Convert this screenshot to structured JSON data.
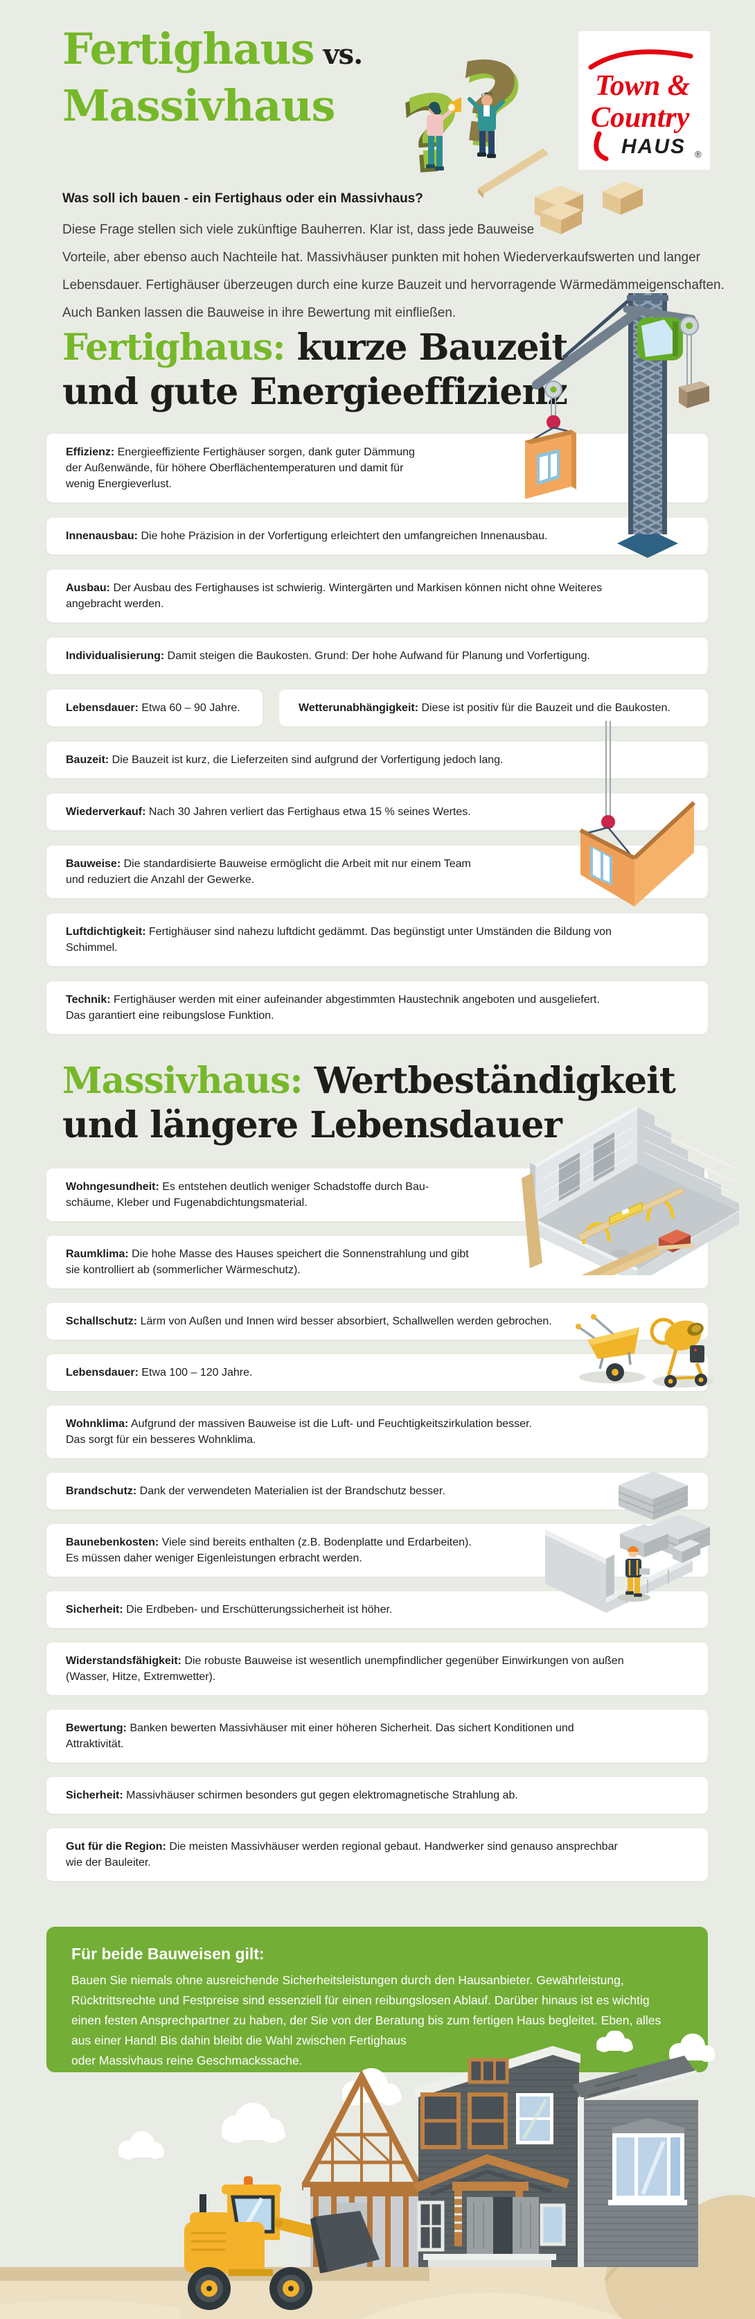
{
  "colors": {
    "background": "#e9ece4",
    "brand_green": "#76b82a",
    "notice_green": "#73ae37",
    "dark_text": "#1d1d1b",
    "body_text": "#3c3c3b",
    "logo_red": "#e30613",
    "card_background": "#ffffff"
  },
  "header": {
    "title": {
      "line1_green": "Fertighaus",
      "line1_dark": " vs.",
      "line2_green": "Massivhaus"
    },
    "question": "Was soll ich bauen - ein Fertighaus oder ein Massivhaus?",
    "intro": "Diese Frage stellen sich viele zukünftige Bauherren. Klar ist, dass jede Bauweise\nVorteile, aber ebenso auch Nachteile hat. Massivhäuser punkten mit hohen Wiederverkaufswerten und langer\nLebensdauer. Fertighäuser überzeugen durch eine kurze Bauzeit und hervorragende Wärmedämmeigenschaften.\nAuch Banken lassen die Bauweise in ihre Bewertung mit einfließen."
  },
  "logo": {
    "line1": "Town &",
    "line2": "Country",
    "line3": "HAUS",
    "registered": "®"
  },
  "fertighaus": {
    "heading": {
      "green": "Fertighaus:",
      "rest": " kurze Bauzeit",
      "line2": "und gute Energieeffizienz"
    },
    "cards": [
      {
        "label": "Effizienz:",
        "text": " Energieeffiziente Fertighäuser sorgen, dank guter Dämmung\nder Außenwände, für höhere Oberflächentemperaturen und damit für\nwenig Energieverlust."
      },
      {
        "label": "Innenausbau:",
        "text": " Die hohe Präzision in der Vorfertigung erleichtert den umfangreichen Innenausbau."
      },
      {
        "label": "Ausbau:",
        "text": " Der Ausbau des Fertighauses ist schwierig. Wintergärten und Markisen können nicht ohne Weiteres\nangebracht werden."
      },
      {
        "label": "Individualisierung:",
        "text": " Damit steigen die Baukosten. Grund: Der hohe Aufwand für Planung und Vorfertigung."
      },
      {
        "label": "Lebensdauer:",
        "text": " Etwa 60 – 90 Jahre.",
        "half": true
      },
      {
        "label": "Wetterunabhängigkeit:",
        "text": " Diese ist positiv für die Bauzeit und die Baukosten."
      },
      {
        "label": "Bauzeit:",
        "text": " Die Bauzeit ist kurz, die Lieferzeiten sind aufgrund der Vorfertigung jedoch lang."
      },
      {
        "label": "Wiederverkauf:",
        "text": " Nach 30 Jahren verliert das Fertighaus etwa 15 % seines Wertes."
      },
      {
        "label": "Bauweise:",
        "text": " Die standardisierte Bauweise ermöglicht die Arbeit mit nur einem Team\nund reduziert die Anzahl der Gewerke."
      },
      {
        "label": "Luftdichtigkeit:",
        "text": " Fertighäuser sind nahezu luftdicht gedämmt. Das begünstigt unter Umständen die Bildung von\nSchimmel."
      },
      {
        "label": "Technik:",
        "text": " Fertighäuser werden mit einer aufeinander abgestimmten Haustechnik angeboten und ausgeliefert.\nDas garantiert eine reibungslose Funktion."
      }
    ]
  },
  "massivhaus": {
    "heading": {
      "green": "Massivhaus:",
      "rest": " Wertbeständigkeit",
      "line2": "und längere Lebensdauer"
    },
    "cards": [
      {
        "label": "Wohngesundheit:",
        "text": " Es entstehen deutlich weniger Schadstoffe durch Bau-\nschäume, Kleber und Fugenabdichtungsmaterial."
      },
      {
        "label": "Raumklima:",
        "text": " Die hohe Masse des Hauses speichert die Sonnenstrahlung und gibt\nsie kontrolliert ab (sommerlicher Wärmeschutz)."
      },
      {
        "label": "Schallschutz:",
        "text": " Lärm von Außen und Innen wird besser absorbiert, Schallwellen werden gebrochen."
      },
      {
        "label": "Lebensdauer:",
        "text": " Etwa 100 – 120 Jahre."
      },
      {
        "label": "Wohnklima:",
        "text": " Aufgrund der massiven Bauweise ist die Luft- und Feuchtigkeitszirkulation besser.\nDas sorgt für ein besseres Wohnklima."
      },
      {
        "label": "Brandschutz:",
        "text": " Dank der verwendeten Materialien ist der Brandschutz besser."
      },
      {
        "label": "Baunebenkosten:",
        "text": " Viele sind bereits enthalten (z.B. Bodenplatte und Erdarbeiten).\nEs müssen daher weniger Eigenleistungen erbracht werden."
      },
      {
        "label": "Sicherheit:",
        "text": " Die Erdbeben- und Erschütterungssicherheit ist höher."
      },
      {
        "label": "Widerstandsfähigkeit:",
        "text": " Die robuste Bauweise ist wesentlich unempfindlicher gegenüber Einwirkungen von außen\n(Wasser, Hitze, Extremwetter)."
      },
      {
        "label": "Bewertung:",
        "text": " Banken bewerten Massivhäuser mit einer höheren Sicherheit. Das sichert Konditionen und\nAttraktivität."
      },
      {
        "label": "Sicherheit:",
        "text": " Massivhäuser schirmen besonders gut gegen elektromagnetische Strahlung ab."
      },
      {
        "label": "Gut für die Region:",
        "text": " Die meisten Massivhäuser werden regional gebaut. Handwerker sind genauso ansprechbar\nwie der Bauleiter."
      }
    ]
  },
  "notice": {
    "title": "Für beide Bauweisen gilt:",
    "body": "Bauen Sie niemals ohne ausreichende Sicherheitsleistungen durch den Hausanbieter. Gewährleistung,\nRücktrittsrechte und Festpreise sind essenziell für einen reibungslosen Ablauf. Darüber hinaus ist es wichtig\neinen festen Ansprechpartner zu haben, der Sie von der Beratung bis zum fertigen Haus begleitet. Eben, alles\naus einer Hand! Bis dahin bleibt die Wahl zwischen Fertighaus\noder Massivhaus reine Geschmackssache."
  }
}
